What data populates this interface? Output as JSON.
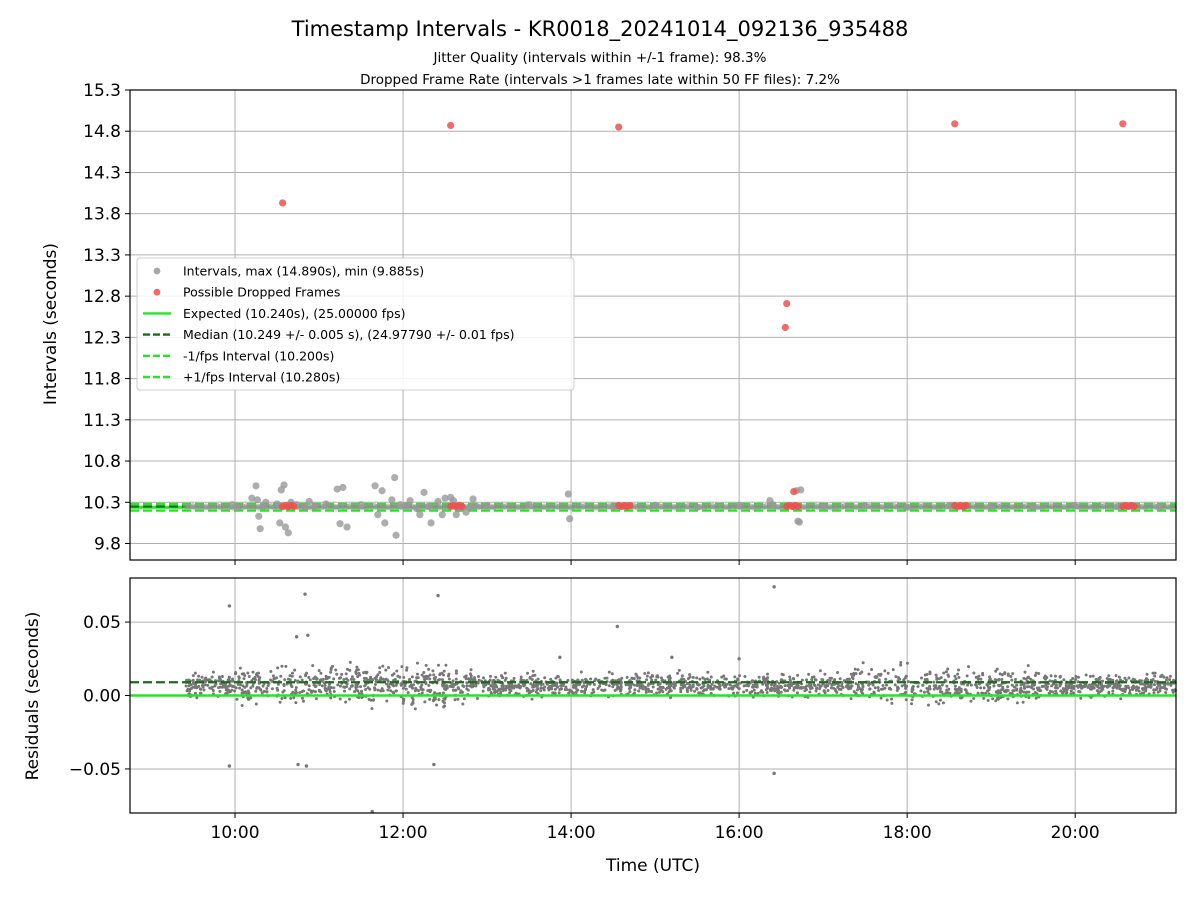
{
  "chart_data": [
    {
      "type": "scatter",
      "title": "Timestamp Intervals - KR0018_20241014_092136_935488",
      "subtitle_lines": [
        "Jitter Quality (intervals within +/-1 frame): 98.3%",
        "Dropped Frame Rate (intervals >1 frames late within 50 FF files): 7.2%"
      ],
      "xlabel": "",
      "ylabel": "Intervals (seconds)",
      "xlim": [
        "08:45",
        "21:12"
      ],
      "ylim": [
        9.6,
        15.3
      ],
      "x_ticks": [
        "10:00",
        "12:00",
        "14:00",
        "16:00",
        "18:00",
        "20:00"
      ],
      "y_ticks": [
        "9.8",
        "10.3",
        "10.8",
        "11.3",
        "11.8",
        "12.3",
        "12.8",
        "13.3",
        "13.8",
        "14.3",
        "14.8",
        "15.3"
      ],
      "grid": true,
      "legend_position": "center-left",
      "legend": [
        "Intervals, max (14.890s), min (9.885s)",
        "Possible Dropped Frames",
        "Expected (10.240s), (25.00000 fps)",
        "Median (10.249 +/- 0.005 s), (24.97790 +/- 0.01 fps)",
        "-1/fps Interval (10.200s)",
        "+1/fps Interval (10.280s)"
      ],
      "reference_lines": [
        {
          "name": "Expected",
          "y": 10.24,
          "color": "#22e822",
          "style": "solid"
        },
        {
          "name": "Median",
          "y": 10.249,
          "color": "#1a6b1a",
          "style": "dashed"
        },
        {
          "name": "-1/fps Interval",
          "y": 10.2,
          "color": "#22e822",
          "style": "dashed"
        },
        {
          "name": "+1/fps Interval",
          "y": 10.28,
          "color": "#22e822",
          "style": "dashed"
        }
      ],
      "series": [
        {
          "name": "Intervals",
          "color": "#999999",
          "points": [
            [
              "09:58",
              10.27
            ],
            [
              "10:02",
              10.23
            ],
            [
              "10:12",
              10.35
            ],
            [
              "10:15",
              10.5
            ],
            [
              "10:16",
              10.33
            ],
            [
              "10:17",
              10.13
            ],
            [
              "10:18",
              9.98
            ],
            [
              "10:20",
              10.25
            ],
            [
              "10:22",
              10.3
            ],
            [
              "10:30",
              10.28
            ],
            [
              "10:32",
              10.05
            ],
            [
              "10:33",
              10.45
            ],
            [
              "10:35",
              10.51
            ],
            [
              "10:36",
              10.0
            ],
            [
              "10:38",
              9.93
            ],
            [
              "10:40",
              10.3
            ],
            [
              "10:44",
              10.27
            ],
            [
              "10:50",
              10.24
            ],
            [
              "10:53",
              10.31
            ],
            [
              "10:57",
              10.25
            ],
            [
              "11:05",
              10.28
            ],
            [
              "11:13",
              10.46
            ],
            [
              "11:15",
              10.04
            ],
            [
              "11:17",
              10.48
            ],
            [
              "11:20",
              10.0
            ],
            [
              "11:30",
              10.27
            ],
            [
              "11:40",
              10.5
            ],
            [
              "11:42",
              10.15
            ],
            [
              "11:45",
              10.44
            ],
            [
              "11:47",
              10.05
            ],
            [
              "11:52",
              10.33
            ],
            [
              "11:54",
              10.6
            ],
            [
              "11:55",
              9.9
            ],
            [
              "11:58",
              10.27
            ],
            [
              "12:02",
              10.26
            ],
            [
              "12:05",
              10.32
            ],
            [
              "12:10",
              10.22
            ],
            [
              "12:12",
              10.15
            ],
            [
              "12:15",
              10.42
            ],
            [
              "12:18",
              10.25
            ],
            [
              "12:20",
              10.05
            ],
            [
              "12:25",
              10.31
            ],
            [
              "12:28",
              10.15
            ],
            [
              "12:30",
              10.35
            ],
            [
              "12:34",
              10.36
            ],
            [
              "12:36",
              10.32
            ],
            [
              "12:38",
              10.15
            ],
            [
              "12:40",
              10.22
            ],
            [
              "12:45",
              10.18
            ],
            [
              "12:48",
              10.24
            ],
            [
              "12:50",
              10.34
            ],
            [
              "12:52",
              10.25
            ],
            [
              "13:00",
              10.26
            ],
            [
              "13:30",
              10.27
            ],
            [
              "13:58",
              10.4
            ],
            [
              "13:59",
              10.1
            ],
            [
              "14:30",
              10.25
            ],
            [
              "15:00",
              10.26
            ],
            [
              "15:30",
              10.24
            ],
            [
              "16:00",
              10.26
            ],
            [
              "16:22",
              10.32
            ],
            [
              "16:24",
              10.27
            ],
            [
              "16:40",
              10.24
            ],
            [
              "16:41",
              10.44
            ],
            [
              "16:42",
              10.07
            ],
            [
              "16:43",
              10.06
            ],
            [
              "16:44",
              10.45
            ],
            [
              "17:00",
              10.25
            ],
            [
              "17:30",
              10.26
            ],
            [
              "18:00",
              10.24
            ],
            [
              "18:30",
              10.26
            ],
            [
              "19:00",
              10.25
            ],
            [
              "19:30",
              10.24
            ],
            [
              "20:00",
              10.26
            ],
            [
              "20:30",
              10.25
            ],
            [
              "21:00",
              10.24
            ]
          ]
        },
        {
          "name": "Possible Dropped Frames",
          "color": "#f05050",
          "points": [
            [
              "10:34",
              13.93
            ],
            [
              "12:34",
              14.87
            ],
            [
              "14:34",
              14.85
            ],
            [
              "16:34",
              12.71
            ],
            [
              "16:33",
              12.42
            ],
            [
              "16:39",
              10.43
            ],
            [
              "18:34",
              14.89
            ],
            [
              "20:34",
              14.89
            ],
            [
              "10:34",
              10.25
            ],
            [
              "10:36",
              10.26
            ],
            [
              "10:38",
              10.25
            ],
            [
              "10:40",
              10.26
            ],
            [
              "10:42",
              10.25
            ],
            [
              "12:34",
              10.25
            ],
            [
              "12:36",
              10.26
            ],
            [
              "12:38",
              10.25
            ],
            [
              "12:40",
              10.26
            ],
            [
              "12:42",
              10.25
            ],
            [
              "14:34",
              10.26
            ],
            [
              "14:36",
              10.25
            ],
            [
              "14:38",
              10.26
            ],
            [
              "14:40",
              10.25
            ],
            [
              "14:42",
              10.26
            ],
            [
              "16:34",
              10.25
            ],
            [
              "16:36",
              10.26
            ],
            [
              "16:38",
              10.25
            ],
            [
              "16:40",
              10.26
            ],
            [
              "16:42",
              10.25
            ],
            [
              "18:34",
              10.26
            ],
            [
              "18:36",
              10.25
            ],
            [
              "18:38",
              10.26
            ],
            [
              "18:40",
              10.25
            ],
            [
              "18:42",
              10.26
            ],
            [
              "20:34",
              10.25
            ],
            [
              "20:36",
              10.26
            ],
            [
              "20:38",
              10.25
            ],
            [
              "20:40",
              10.26
            ],
            [
              "20:42",
              10.25
            ]
          ]
        }
      ]
    },
    {
      "type": "scatter",
      "title": "",
      "xlabel": "Time (UTC)",
      "ylabel": "Residuals (seconds)",
      "xlim": [
        "08:45",
        "21:12"
      ],
      "ylim": [
        -0.08,
        0.08
      ],
      "x_ticks": [
        "10:00",
        "12:00",
        "14:00",
        "16:00",
        "18:00",
        "20:00"
      ],
      "y_ticks": [
        "0.05",
        "0.00",
        "−0.05"
      ],
      "y_tick_values": [
        0.05,
        0.0,
        -0.05
      ],
      "grid": true,
      "reference_lines": [
        {
          "name": "Expected",
          "y": 0.0,
          "color": "#22e822",
          "style": "solid"
        },
        {
          "name": "Median",
          "y": 0.009,
          "color": "#1a6b1a",
          "style": "dashed"
        }
      ],
      "series": [
        {
          "name": "Residuals",
          "color": "#777777",
          "x_range": [
            "09:25",
            "21:12"
          ],
          "typical_center": 0.007,
          "typical_spread": 0.006,
          "outliers": [
            [
              "09:56",
              0.061
            ],
            [
              "10:50",
              0.069
            ],
            [
              "10:44",
              0.04
            ],
            [
              "10:52",
              0.041
            ],
            [
              "12:25",
              0.068
            ],
            [
              "14:33",
              0.047
            ],
            [
              "16:25",
              0.074
            ],
            [
              "09:56",
              -0.048
            ],
            [
              "10:45",
              -0.047
            ],
            [
              "10:51",
              -0.048
            ],
            [
              "11:38",
              -0.079
            ],
            [
              "12:22",
              -0.047
            ],
            [
              "16:25",
              -0.053
            ],
            [
              "13:52",
              0.026
            ],
            [
              "16:00",
              0.025
            ],
            [
              "15:12",
              0.026
            ]
          ]
        }
      ]
    }
  ]
}
